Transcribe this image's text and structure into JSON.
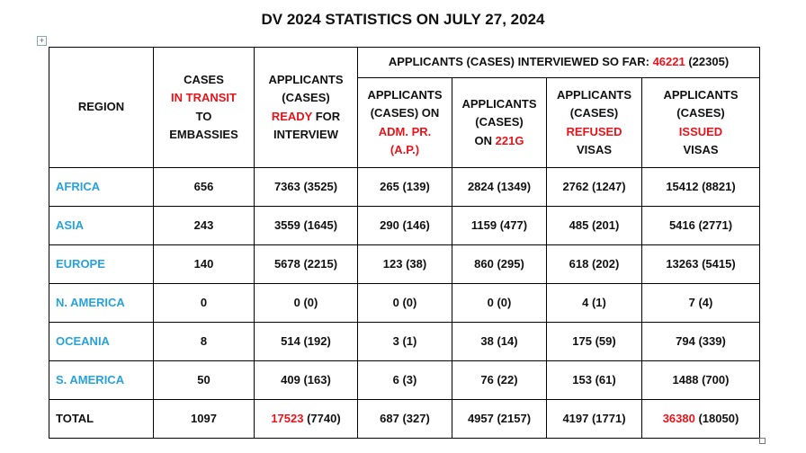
{
  "title": "DV 2024 STATISTICS ON JULY 27, 2024",
  "table": {
    "header": [
      [
        [
          "REGION"
        ]
      ],
      [
        [
          "CASES"
        ],
        [
          {
            "text": "IN TRANSIT",
            "color": "#e8141b"
          }
        ],
        [
          "TO"
        ],
        [
          "EMBASSIES"
        ]
      ],
      [
        [
          "APPLICANTS"
        ],
        [
          "(CASES)"
        ],
        [
          {
            "text": "READY",
            "color": "#e8141b"
          },
          " FOR"
        ],
        [
          "INTERVIEW"
        ]
      ],
      [
        [
          "APPLICANTS (CASES) INTERVIEWED SO FAR: ",
          {
            "text": "46221",
            "color": "#e8141b"
          },
          " (22305)"
        ]
      ]
    ],
    "subheader": [
      [
        [
          "APPLICANTS"
        ],
        [
          "(CASES) ON"
        ],
        [
          {
            "text": "ADM. PR.",
            "color": "#e8141b"
          }
        ],
        [
          {
            "text": "(A.P.)",
            "color": "#e8141b"
          }
        ]
      ],
      [
        [
          "APPLICANTS"
        ],
        [
          "(CASES)"
        ],
        [
          "ON ",
          {
            "text": "221G",
            "color": "#e8141b"
          }
        ]
      ],
      [
        [
          "APPLICANTS"
        ],
        [
          "(CASES)"
        ],
        [
          {
            "text": "REFUSED",
            "color": "#e8141b"
          }
        ],
        [
          "VISAS"
        ]
      ],
      [
        [
          "APPLICANTS"
        ],
        [
          "(CASES)"
        ],
        [
          {
            "text": "ISSUED",
            "color": "#e8141b"
          }
        ],
        [
          "VISAS"
        ]
      ]
    ],
    "rows": [
      [
        {
          "text": "AFRICA",
          "color": "#27a2db"
        },
        "656",
        "7363 (3525)",
        "265 (139)",
        "2824 (1349)",
        "2762 (1247)",
        "15412 (8821)"
      ],
      [
        {
          "text": "ASIA",
          "color": "#27a2db"
        },
        "243",
        "3559 (1645)",
        "290 (146)",
        "1159 (477)",
        "485 (201)",
        "5416 (2771)"
      ],
      [
        {
          "text": "EUROPE",
          "color": "#27a2db"
        },
        "140",
        "5678 (2215)",
        "123 (38)",
        "860 (295)",
        "618 (202)",
        "13263 (5415)"
      ],
      [
        {
          "text": "N. AMERICA",
          "color": "#27a2db"
        },
        "0",
        "0 (0)",
        "0 (0)",
        "0 (0)",
        "4 (1)",
        "7 (4)"
      ],
      [
        {
          "text": "OCEANIA",
          "color": "#27a2db"
        },
        "8",
        "514 (192)",
        "3 (1)",
        "38 (14)",
        "175 (59)",
        "794 (339)"
      ],
      [
        {
          "text": "S. AMERICA",
          "color": "#27a2db"
        },
        "50",
        "409 (163)",
        "6 (3)",
        "76 (22)",
        "153 (61)",
        "1488 (700)"
      ],
      [
        "TOTAL",
        "1097",
        [
          {
            "text": "17523",
            "color": "#e8141b"
          },
          " (7740)"
        ],
        "687 (327)",
        "4957 (2157)",
        "4197 (1771)",
        [
          {
            "text": "36380",
            "color": "#e8141b"
          },
          " (18050)"
        ]
      ]
    ]
  }
}
